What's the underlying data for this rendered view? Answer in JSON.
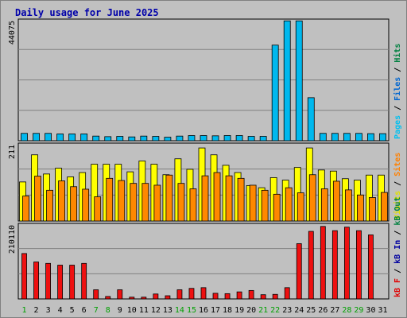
{
  "chart_data": {
    "type": "bar",
    "title": "Daily usage for June 2025",
    "days": [
      {
        "label": "1",
        "weekend": true
      },
      {
        "label": "2",
        "weekend": false
      },
      {
        "label": "3",
        "weekend": false
      },
      {
        "label": "4",
        "weekend": false
      },
      {
        "label": "5",
        "weekend": false
      },
      {
        "label": "6",
        "weekend": false
      },
      {
        "label": "7",
        "weekend": true
      },
      {
        "label": "8",
        "weekend": true
      },
      {
        "label": "9",
        "weekend": false
      },
      {
        "label": "10",
        "weekend": false
      },
      {
        "label": "11",
        "weekend": false
      },
      {
        "label": "12",
        "weekend": false
      },
      {
        "label": "13",
        "weekend": false
      },
      {
        "label": "14",
        "weekend": true
      },
      {
        "label": "15",
        "weekend": true
      },
      {
        "label": "16",
        "weekend": false
      },
      {
        "label": "17",
        "weekend": false
      },
      {
        "label": "18",
        "weekend": false
      },
      {
        "label": "19",
        "weekend": false
      },
      {
        "label": "20",
        "weekend": false
      },
      {
        "label": "21",
        "weekend": true
      },
      {
        "label": "22",
        "weekend": true
      },
      {
        "label": "23",
        "weekend": false
      },
      {
        "label": "24",
        "weekend": false
      },
      {
        "label": "25",
        "weekend": false
      },
      {
        "label": "26",
        "weekend": false
      },
      {
        "label": "27",
        "weekend": false
      },
      {
        "label": "28",
        "weekend": true
      },
      {
        "label": "29",
        "weekend": true
      },
      {
        "label": "30",
        "weekend": false
      },
      {
        "label": "31",
        "weekend": false
      }
    ],
    "panels": [
      {
        "id": "hits",
        "ymax_label": "44075",
        "ymax": 44075,
        "legend": [
          {
            "text": "Pages",
            "color": "#00c0f0"
          },
          {
            "text": " / ",
            "color": "#000000"
          },
          {
            "text": "Files",
            "color": "#0066d0"
          },
          {
            "text": " / ",
            "color": "#000000"
          },
          {
            "text": "Hits",
            "color": "#008040"
          }
        ],
        "series": [
          {
            "name": "Pages",
            "color": "#00b8ee",
            "values": [
              2700,
              2700,
              2700,
              2500,
              2500,
              2500,
              1700,
              1500,
              1600,
              1400,
              1700,
              1600,
              1300,
              1700,
              1900,
              1900,
              1800,
              1900,
              1900,
              1600,
              1600,
              35100,
              44000,
              44000,
              15800,
              2700,
              2700,
              2700,
              2700,
              2600,
              2600
            ]
          }
        ]
      },
      {
        "id": "visits",
        "ymax_label": "211",
        "ymax": 211,
        "legend": [
          {
            "text": "Visits",
            "color": "#e0e000"
          },
          {
            "text": " / ",
            "color": "#000000"
          },
          {
            "text": "Sites",
            "color": "#ff8000"
          }
        ],
        "series": [
          {
            "name": "Visits",
            "color": "#ffff00",
            "values": [
              108,
              183,
              130,
              146,
              122,
              134,
              157,
              157,
              157,
              136,
              166,
              157,
              128,
              172,
              143,
              202,
              183,
              154,
              134,
              98,
              92,
              120,
              113,
              148,
              202,
              141,
              138,
              117,
              113,
              127,
              127
            ]
          },
          {
            "name": "Sites",
            "color": "#ff8800",
            "values": [
              69,
              124,
              85,
              111,
              95,
              88,
              67,
              118,
              112,
              104,
              104,
              99,
              127,
              104,
              89,
              125,
              134,
              125,
              118,
              99,
              85,
              74,
              92,
              78,
              128,
              89,
              110,
              86,
              72,
              65,
              79
            ]
          }
        ]
      },
      {
        "id": "kbytes",
        "ymax_label": "210110",
        "ymax": 210110,
        "legend": [
          {
            "text": "kB F",
            "color": "#e00000"
          },
          {
            "text": " / ",
            "color": "#000000"
          },
          {
            "text": "kB In",
            "color": "#0000a0"
          },
          {
            "text": " / ",
            "color": "#000000"
          },
          {
            "text": "kB Out",
            "color": "#008040"
          }
        ],
        "series": [
          {
            "name": "kB F",
            "color": "#ee1010",
            "values": [
              129000,
              105000,
              101000,
              96000,
              96000,
              101000,
              26000,
              7000,
              26000,
              5000,
              5000,
              14000,
              9000,
              26000,
              30000,
              32000,
              16000,
              15000,
              20000,
              24000,
              12000,
              13000,
              32000,
              157000,
              192000,
              206000,
              194000,
              204000,
              194000,
              182000,
              0
            ]
          }
        ]
      }
    ]
  }
}
